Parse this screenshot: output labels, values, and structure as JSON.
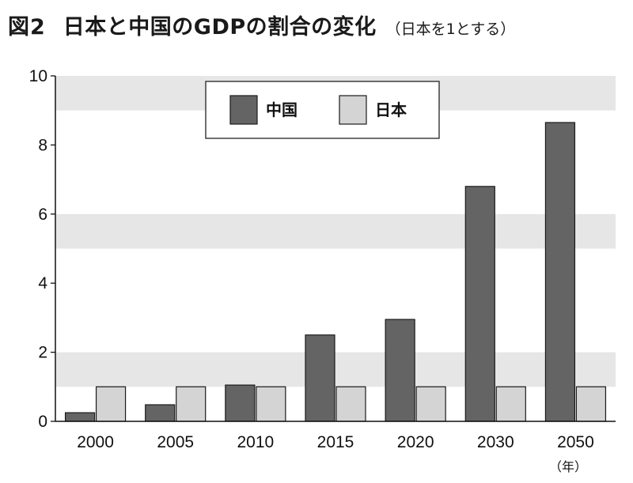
{
  "header": {
    "figure_number": "図2",
    "title": "日本と中国のGDPの割合の変化",
    "subtitle": "（日本を1とする）"
  },
  "chart_data": {
    "type": "bar",
    "categories": [
      "2000",
      "2005",
      "2010",
      "2015",
      "2020",
      "2030",
      "2050"
    ],
    "x_unit_label": "（年）",
    "series": [
      {
        "name": "中国",
        "values": [
          0.25,
          0.48,
          1.05,
          2.5,
          2.95,
          6.8,
          8.65
        ],
        "color": "#646464"
      },
      {
        "name": "日本",
        "values": [
          1,
          1,
          1,
          1,
          1,
          1,
          1
        ],
        "color": "#d4d4d4"
      }
    ],
    "ylim": [
      0,
      10
    ],
    "yticks": [
      0,
      2,
      4,
      6,
      8,
      10
    ],
    "grid": "alternating horizontal bands",
    "band_color": "#e6e6e6",
    "legend_position": "top-center",
    "title": "",
    "xlabel": "",
    "ylabel": ""
  }
}
